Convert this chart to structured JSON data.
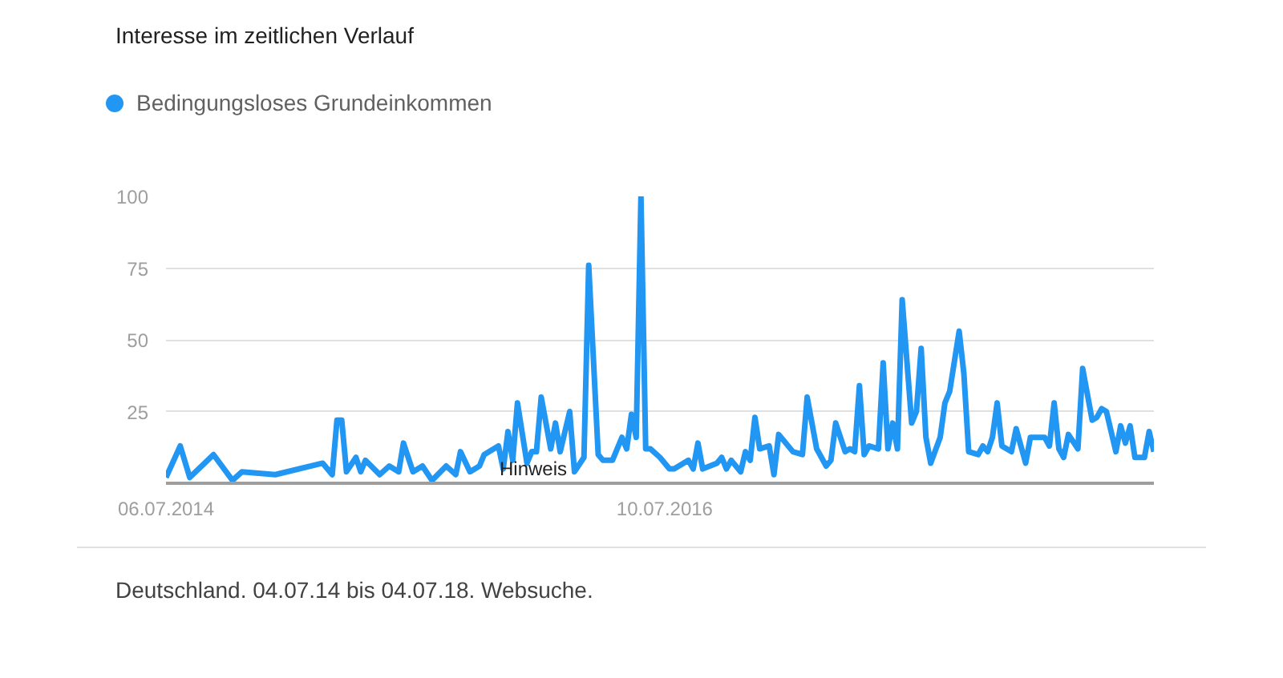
{
  "chart_data": {
    "type": "line",
    "title": "Interesse im zeitlichen Verlauf",
    "x": [
      "2014-07-06",
      "2014-07-27",
      "2014-08-10",
      "2014-09-14",
      "2014-10-12",
      "2014-10-26",
      "2014-12-14",
      "2015-02-22",
      "2015-03-08",
      "2015-03-15",
      "2015-03-22",
      "2015-03-29",
      "2015-04-12",
      "2015-04-19",
      "2015-04-26",
      "2015-05-17",
      "2015-05-31",
      "2015-06-14",
      "2015-06-21",
      "2015-07-05",
      "2015-07-19",
      "2015-08-02",
      "2015-08-23",
      "2015-09-06",
      "2015-09-13",
      "2015-09-27",
      "2015-10-11",
      "2015-10-18",
      "2015-11-08",
      "2015-11-15",
      "2015-11-22",
      "2015-11-29",
      "2015-12-06",
      "2015-12-20",
      "2015-12-27",
      "2016-01-03",
      "2016-01-10",
      "2016-01-24",
      "2016-01-31",
      "2016-02-07",
      "2016-02-21",
      "2016-02-28",
      "2016-03-13",
      "2016-03-20",
      "2016-04-03",
      "2016-04-10",
      "2016-04-24",
      "2016-05-08",
      "2016-05-15",
      "2016-05-22",
      "2016-05-29",
      "2016-06-05",
      "2016-06-12",
      "2016-06-19",
      "2016-07-03",
      "2016-07-17",
      "2016-07-24",
      "2016-08-14",
      "2016-08-21",
      "2016-08-28",
      "2016-09-04",
      "2016-09-25",
      "2016-10-02",
      "2016-10-09",
      "2016-10-16",
      "2016-10-30",
      "2016-11-06",
      "2016-11-13",
      "2016-11-20",
      "2016-11-27",
      "2016-12-11",
      "2016-12-18",
      "2016-12-25",
      "2017-01-15",
      "2017-01-29",
      "2017-02-05",
      "2017-02-19",
      "2017-03-05",
      "2017-03-12",
      "2017-03-19",
      "2017-04-02",
      "2017-04-09",
      "2017-04-16",
      "2017-04-23",
      "2017-04-30",
      "2017-05-07",
      "2017-05-21",
      "2017-05-28",
      "2017-06-04",
      "2017-06-11",
      "2017-06-18",
      "2017-06-25",
      "2017-07-09",
      "2017-07-16",
      "2017-07-23",
      "2017-07-30",
      "2017-08-06",
      "2017-08-20",
      "2017-08-27",
      "2017-09-03",
      "2017-09-17",
      "2017-09-24",
      "2017-10-01",
      "2017-10-15",
      "2017-10-22",
      "2017-10-29",
      "2017-11-05",
      "2017-11-12",
      "2017-11-19",
      "2017-12-03",
      "2017-12-10",
      "2017-12-24",
      "2017-12-31",
      "2018-01-21",
      "2018-01-28",
      "2018-02-04",
      "2018-02-11",
      "2018-02-18",
      "2018-02-25",
      "2018-03-11",
      "2018-03-18",
      "2018-04-01",
      "2018-04-08",
      "2018-04-15",
      "2018-04-22",
      "2018-05-06",
      "2018-05-13",
      "2018-05-20",
      "2018-05-27",
      "2018-06-03",
      "2018-06-17",
      "2018-06-24",
      "2018-07-01"
    ],
    "series": [
      {
        "name": "Bedingungsloses Grundeinkommen",
        "color": "#2196f3",
        "values": [
          2,
          13,
          2,
          10,
          1,
          4,
          3,
          7,
          3,
          22,
          22,
          4,
          9,
          4,
          8,
          3,
          6,
          4,
          14,
          4,
          6,
          1,
          6,
          3,
          11,
          4,
          6,
          10,
          13,
          5,
          18,
          8,
          28,
          7,
          11,
          11,
          30,
          12,
          21,
          11,
          25,
          4,
          9,
          76,
          10,
          8,
          8,
          16,
          12,
          24,
          16,
          100,
          12,
          12,
          9,
          5,
          5,
          8,
          5,
          14,
          5,
          7,
          9,
          5,
          8,
          4,
          11,
          8,
          23,
          12,
          13,
          3,
          17,
          11,
          10,
          30,
          12,
          6,
          8,
          21,
          11,
          12,
          11,
          34,
          10,
          13,
          12,
          42,
          12,
          21,
          12,
          64,
          21,
          25,
          47,
          16,
          7,
          16,
          28,
          32,
          53,
          38,
          11,
          10,
          13,
          11,
          16,
          28,
          13,
          11,
          19,
          7,
          16,
          16,
          13,
          28,
          12,
          9,
          17,
          12,
          40,
          22,
          23,
          26,
          25,
          11,
          20,
          14,
          20,
          9,
          9,
          18,
          11
        ]
      }
    ],
    "xlim": [
      "2014-07-06",
      "2018-07-01"
    ],
    "xticks": [
      {
        "value": "2014-07-06",
        "label": "06.07.2014"
      },
      {
        "value": "2016-07-10",
        "label": "10.07.2016"
      }
    ],
    "ylim": [
      0,
      100
    ],
    "yticks": [
      {
        "value": 0,
        "label": null
      },
      25,
      50,
      75,
      100
    ],
    "grid": "y",
    "legend": "top left",
    "marker": "none",
    "line_style": "solid",
    "annotations": [
      "Hinweis",
      "Deutschland. 04.07.14 bis 04.07.18. Websuche."
    ]
  }
}
